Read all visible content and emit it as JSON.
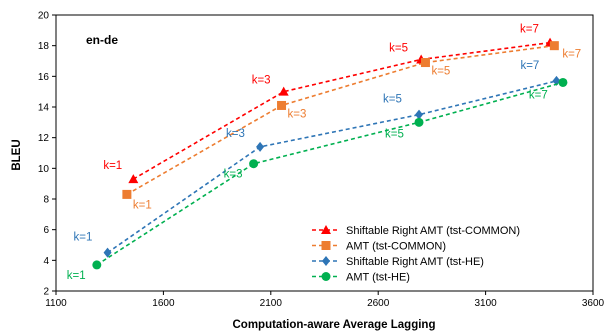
{
  "chart_data": {
    "type": "line",
    "annotation": "en-de",
    "xlabel": "Computation-aware Average Lagging",
    "ylabel": "BLEU",
    "xlim": [
      1100,
      3600
    ],
    "ylim": [
      2,
      20
    ],
    "xticks": [
      1100,
      1600,
      2100,
      2600,
      3100,
      3600
    ],
    "yticks": [
      2,
      4,
      6,
      8,
      10,
      12,
      14,
      16,
      18,
      20
    ],
    "grid": false,
    "legend_position": "bottom-right",
    "series": [
      {
        "name": "Shiftable Right AMT (tst-COMMON)",
        "color": "#ff0000",
        "marker": "triangle",
        "x": [
          1460,
          2160,
          2800,
          3400
        ],
        "y": [
          9.3,
          15.0,
          17.1,
          18.2
        ],
        "labels": [
          "k=1",
          "k=3",
          "k=5",
          "k=7"
        ]
      },
      {
        "name": "AMT (tst-COMMON)",
        "color": "#ed7d31",
        "marker": "square",
        "x": [
          1430,
          2150,
          2820,
          3420
        ],
        "y": [
          8.3,
          14.1,
          16.9,
          18.0
        ],
        "labels": [
          "k=1",
          "k=3",
          "k=5",
          "k=7"
        ]
      },
      {
        "name": "Shiftable Right AMT (tst-HE)",
        "color": "#2e75b6",
        "marker": "diamond",
        "x": [
          1340,
          2050,
          2790,
          3430
        ],
        "y": [
          4.5,
          11.4,
          13.5,
          15.7
        ],
        "labels": [
          "k=1",
          "k=3",
          "k=5",
          "k=7"
        ]
      },
      {
        "name": "AMT (tst-HE)",
        "color": "#00b050",
        "marker": "circle",
        "x": [
          1290,
          2020,
          2790,
          3460
        ],
        "y": [
          3.7,
          10.3,
          13.0,
          15.6
        ],
        "labels": [
          "k=1",
          "k=3",
          "k=5",
          "k=7"
        ]
      }
    ]
  }
}
